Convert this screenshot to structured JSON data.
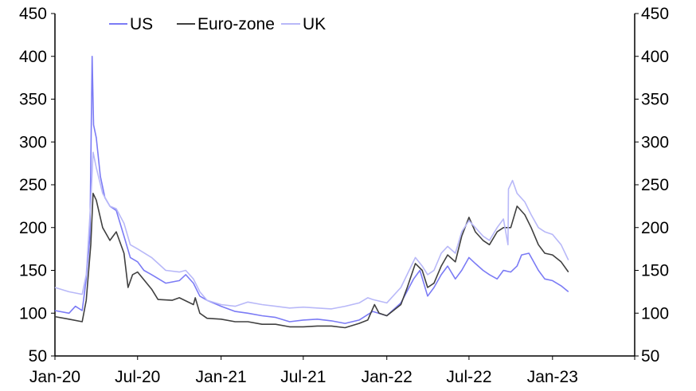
{
  "chart_data": {
    "type": "line",
    "title": "",
    "xlabel": "",
    "ylabel": "",
    "xlim": [
      "2020-01-01",
      "2023-07-01"
    ],
    "ylim": [
      50,
      450
    ],
    "yticks": [
      50,
      100,
      150,
      200,
      250,
      300,
      350,
      400,
      450
    ],
    "xticks": [
      {
        "date": "2020-01-01",
        "label": "Jan-20"
      },
      {
        "date": "2020-07-01",
        "label": "Jul-20"
      },
      {
        "date": "2021-01-01",
        "label": "Jan-21"
      },
      {
        "date": "2021-07-01",
        "label": "Jul-21"
      },
      {
        "date": "2022-01-01",
        "label": "Jan-22"
      },
      {
        "date": "2022-07-01",
        "label": "Jul-22"
      },
      {
        "date": "2023-01-01",
        "label": "Jan-23"
      }
    ],
    "grid": false,
    "legend": "top-center",
    "series": [
      {
        "name": "US",
        "color": "#7b7bf5",
        "points": [
          [
            "2020-01-01",
            103
          ],
          [
            "2020-02-01",
            100
          ],
          [
            "2020-02-15",
            108
          ],
          [
            "2020-03-01",
            103
          ],
          [
            "2020-03-10",
            140
          ],
          [
            "2020-03-18",
            190
          ],
          [
            "2020-03-23",
            400
          ],
          [
            "2020-03-26",
            320
          ],
          [
            "2020-04-01",
            305
          ],
          [
            "2020-04-10",
            260
          ],
          [
            "2020-04-20",
            235
          ],
          [
            "2020-05-01",
            225
          ],
          [
            "2020-05-15",
            220
          ],
          [
            "2020-06-01",
            190
          ],
          [
            "2020-06-15",
            165
          ],
          [
            "2020-07-01",
            160
          ],
          [
            "2020-07-15",
            150
          ],
          [
            "2020-08-01",
            145
          ],
          [
            "2020-09-01",
            135
          ],
          [
            "2020-10-01",
            138
          ],
          [
            "2020-10-15",
            145
          ],
          [
            "2020-11-01",
            135
          ],
          [
            "2020-11-15",
            120
          ],
          [
            "2020-12-01",
            115
          ],
          [
            "2021-01-01",
            108
          ],
          [
            "2021-02-01",
            102
          ],
          [
            "2021-03-01",
            100
          ],
          [
            "2021-04-01",
            97
          ],
          [
            "2021-05-01",
            95
          ],
          [
            "2021-06-01",
            90
          ],
          [
            "2021-07-01",
            92
          ],
          [
            "2021-08-01",
            93
          ],
          [
            "2021-09-01",
            91
          ],
          [
            "2021-10-01",
            88
          ],
          [
            "2021-11-01",
            92
          ],
          [
            "2021-12-01",
            102
          ],
          [
            "2022-01-01",
            97
          ],
          [
            "2022-02-01",
            112
          ],
          [
            "2022-03-01",
            140
          ],
          [
            "2022-03-15",
            150
          ],
          [
            "2022-04-01",
            120
          ],
          [
            "2022-04-15",
            130
          ],
          [
            "2022-05-01",
            145
          ],
          [
            "2022-05-15",
            155
          ],
          [
            "2022-06-01",
            140
          ],
          [
            "2022-06-15",
            150
          ],
          [
            "2022-07-01",
            165
          ],
          [
            "2022-07-15",
            158
          ],
          [
            "2022-08-01",
            150
          ],
          [
            "2022-08-15",
            145
          ],
          [
            "2022-09-01",
            140
          ],
          [
            "2022-09-15",
            150
          ],
          [
            "2022-10-01",
            148
          ],
          [
            "2022-10-15",
            155
          ],
          [
            "2022-10-25",
            168
          ],
          [
            "2022-11-10",
            170
          ],
          [
            "2022-12-01",
            150
          ],
          [
            "2022-12-15",
            140
          ],
          [
            "2023-01-01",
            138
          ],
          [
            "2023-01-20",
            132
          ],
          [
            "2023-02-05",
            125
          ]
        ]
      },
      {
        "name": "Euro-zone",
        "color": "#404040",
        "points": [
          [
            "2020-01-01",
            96
          ],
          [
            "2020-02-01",
            93
          ],
          [
            "2020-03-01",
            90
          ],
          [
            "2020-03-10",
            115
          ],
          [
            "2020-03-20",
            180
          ],
          [
            "2020-03-25",
            240
          ],
          [
            "2020-04-01",
            232
          ],
          [
            "2020-04-15",
            200
          ],
          [
            "2020-05-01",
            185
          ],
          [
            "2020-05-15",
            195
          ],
          [
            "2020-06-01",
            170
          ],
          [
            "2020-06-10",
            130
          ],
          [
            "2020-06-20",
            145
          ],
          [
            "2020-07-01",
            148
          ],
          [
            "2020-08-01",
            128
          ],
          [
            "2020-08-15",
            116
          ],
          [
            "2020-09-15",
            115
          ],
          [
            "2020-10-01",
            118
          ],
          [
            "2020-11-01",
            110
          ],
          [
            "2020-11-05",
            118
          ],
          [
            "2020-11-15",
            100
          ],
          [
            "2020-12-01",
            94
          ],
          [
            "2021-01-01",
            93
          ],
          [
            "2021-02-01",
            90
          ],
          [
            "2021-03-01",
            90
          ],
          [
            "2021-04-01",
            87
          ],
          [
            "2021-05-01",
            87
          ],
          [
            "2021-06-01",
            84
          ],
          [
            "2021-07-01",
            84
          ],
          [
            "2021-08-01",
            85
          ],
          [
            "2021-09-01",
            85
          ],
          [
            "2021-10-01",
            83
          ],
          [
            "2021-11-01",
            88
          ],
          [
            "2021-11-20",
            92
          ],
          [
            "2021-12-05",
            110
          ],
          [
            "2021-12-15",
            100
          ],
          [
            "2022-01-01",
            97
          ],
          [
            "2022-02-01",
            110
          ],
          [
            "2022-02-15",
            130
          ],
          [
            "2022-03-05",
            158
          ],
          [
            "2022-03-20",
            150
          ],
          [
            "2022-04-01",
            130
          ],
          [
            "2022-04-15",
            135
          ],
          [
            "2022-05-01",
            155
          ],
          [
            "2022-05-15",
            168
          ],
          [
            "2022-06-01",
            160
          ],
          [
            "2022-06-15",
            190
          ],
          [
            "2022-07-01",
            212
          ],
          [
            "2022-07-15",
            195
          ],
          [
            "2022-08-01",
            185
          ],
          [
            "2022-08-15",
            180
          ],
          [
            "2022-09-01",
            195
          ],
          [
            "2022-09-15",
            200
          ],
          [
            "2022-10-01",
            200
          ],
          [
            "2022-10-15",
            225
          ],
          [
            "2022-11-01",
            215
          ],
          [
            "2022-11-15",
            200
          ],
          [
            "2022-12-01",
            180
          ],
          [
            "2022-12-15",
            170
          ],
          [
            "2023-01-01",
            168
          ],
          [
            "2023-01-20",
            160
          ],
          [
            "2023-02-05",
            148
          ]
        ]
      },
      {
        "name": "UK",
        "color": "#b8b8f8",
        "points": [
          [
            "2020-01-01",
            130
          ],
          [
            "2020-02-01",
            125
          ],
          [
            "2020-03-01",
            122
          ],
          [
            "2020-03-10",
            145
          ],
          [
            "2020-03-20",
            230
          ],
          [
            "2020-03-25",
            288
          ],
          [
            "2020-04-01",
            270
          ],
          [
            "2020-04-15",
            240
          ],
          [
            "2020-05-01",
            225
          ],
          [
            "2020-05-15",
            222
          ],
          [
            "2020-06-01",
            205
          ],
          [
            "2020-06-15",
            180
          ],
          [
            "2020-07-01",
            175
          ],
          [
            "2020-08-01",
            165
          ],
          [
            "2020-09-01",
            150
          ],
          [
            "2020-10-01",
            148
          ],
          [
            "2020-10-15",
            150
          ],
          [
            "2020-11-01",
            140
          ],
          [
            "2020-11-15",
            125
          ],
          [
            "2020-12-01",
            115
          ],
          [
            "2021-01-01",
            110
          ],
          [
            "2021-02-01",
            108
          ],
          [
            "2021-03-01",
            113
          ],
          [
            "2021-04-01",
            110
          ],
          [
            "2021-05-01",
            108
          ],
          [
            "2021-06-01",
            106
          ],
          [
            "2021-07-01",
            107
          ],
          [
            "2021-08-01",
            106
          ],
          [
            "2021-09-01",
            105
          ],
          [
            "2021-10-01",
            108
          ],
          [
            "2021-11-01",
            112
          ],
          [
            "2021-11-20",
            118
          ],
          [
            "2021-12-01",
            116
          ],
          [
            "2022-01-01",
            112
          ],
          [
            "2022-02-01",
            130
          ],
          [
            "2022-03-05",
            165
          ],
          [
            "2022-03-20",
            155
          ],
          [
            "2022-04-01",
            145
          ],
          [
            "2022-04-15",
            150
          ],
          [
            "2022-05-01",
            170
          ],
          [
            "2022-05-15",
            178
          ],
          [
            "2022-06-01",
            170
          ],
          [
            "2022-06-15",
            195
          ],
          [
            "2022-07-01",
            208
          ],
          [
            "2022-07-15",
            200
          ],
          [
            "2022-08-01",
            190
          ],
          [
            "2022-08-15",
            185
          ],
          [
            "2022-09-01",
            200
          ],
          [
            "2022-09-15",
            210
          ],
          [
            "2022-09-25",
            180
          ],
          [
            "2022-09-26",
            245
          ],
          [
            "2022-10-05",
            255
          ],
          [
            "2022-10-15",
            240
          ],
          [
            "2022-11-01",
            230
          ],
          [
            "2022-11-15",
            215
          ],
          [
            "2022-12-01",
            200
          ],
          [
            "2022-12-15",
            195
          ],
          [
            "2023-01-01",
            192
          ],
          [
            "2023-01-20",
            180
          ],
          [
            "2023-02-05",
            162
          ]
        ]
      }
    ]
  }
}
